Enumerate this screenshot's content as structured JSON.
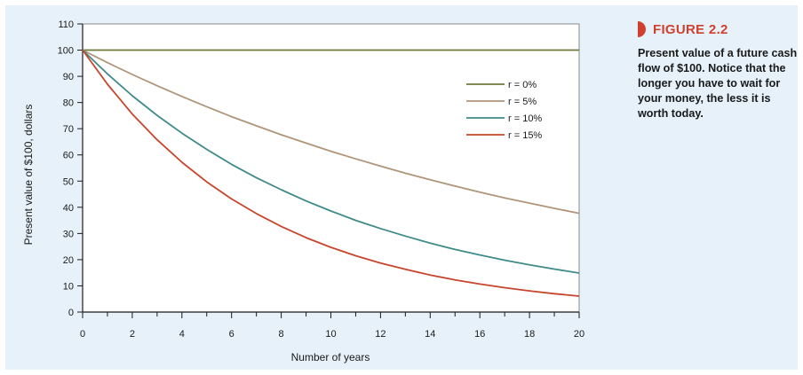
{
  "figure": {
    "label": "FIGURE 2.2",
    "caption": "Present value of a future cash flow of $100. Notice that the longer you have to wait for your money, the less it is worth today."
  },
  "chart_data": {
    "type": "line",
    "xlabel": "Number of years",
    "ylabel": "Present value of $100, dollars",
    "xlim": [
      0,
      20
    ],
    "ylim": [
      0,
      110
    ],
    "xticks": [
      0,
      2,
      4,
      6,
      8,
      10,
      12,
      14,
      16,
      18,
      20
    ],
    "yticks": [
      0,
      10,
      20,
      30,
      40,
      50,
      60,
      70,
      80,
      90,
      100,
      110
    ],
    "grid": false,
    "legend_position": "top-right",
    "x": [
      0,
      1,
      2,
      3,
      4,
      5,
      6,
      7,
      8,
      9,
      10,
      11,
      12,
      13,
      14,
      15,
      16,
      17,
      18,
      19,
      20
    ],
    "series": [
      {
        "name": "r = 0%",
        "color": "#6e7a3a",
        "values": [
          100,
          100,
          100,
          100,
          100,
          100,
          100,
          100,
          100,
          100,
          100,
          100,
          100,
          100,
          100,
          100,
          100,
          100,
          100,
          100,
          100
        ]
      },
      {
        "name": "r = 5%",
        "color": "#b0957a",
        "values": [
          100,
          95.2,
          90.7,
          86.4,
          82.3,
          78.4,
          74.6,
          71.1,
          67.7,
          64.5,
          61.4,
          58.5,
          55.7,
          53.0,
          50.5,
          48.1,
          45.8,
          43.6,
          41.6,
          39.6,
          37.7
        ]
      },
      {
        "name": "r = 10%",
        "color": "#3f8a8a",
        "values": [
          100,
          90.9,
          82.6,
          75.1,
          68.3,
          62.1,
          56.4,
          51.3,
          46.7,
          42.4,
          38.6,
          35.0,
          31.9,
          29.0,
          26.3,
          23.9,
          21.8,
          19.8,
          18.0,
          16.4,
          14.9
        ]
      },
      {
        "name": "r = 15%",
        "color": "#c7452c",
        "values": [
          100,
          87.0,
          75.6,
          65.8,
          57.2,
          49.7,
          43.2,
          37.6,
          32.7,
          28.4,
          24.7,
          21.5,
          18.7,
          16.3,
          14.1,
          12.3,
          10.7,
          9.3,
          8.1,
          7.0,
          6.1
        ]
      }
    ]
  }
}
